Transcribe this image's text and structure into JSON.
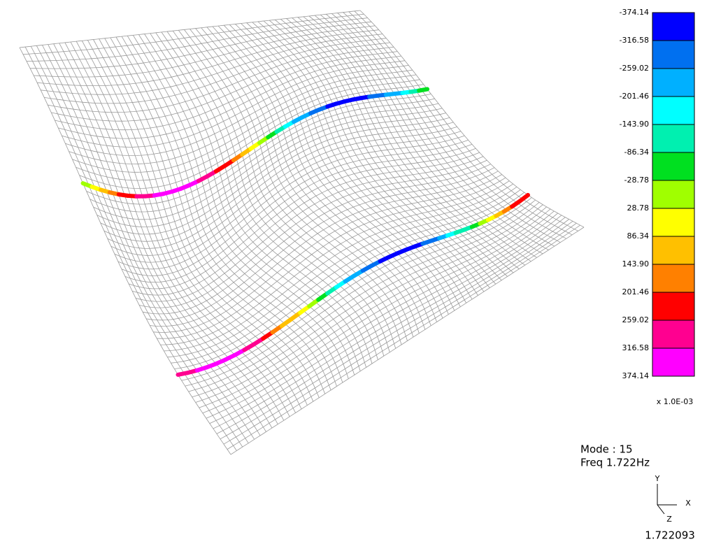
{
  "legend": {
    "labels": [
      "-374.14",
      "-316.58",
      "-259.02",
      "-201.46",
      "-143.90",
      "-86.34",
      "-28.78",
      "28.78",
      "86.34",
      "143.90",
      "201.46",
      "259.02",
      "316.58",
      "374.14"
    ],
    "colors": [
      "#0000ff",
      "#0070f0",
      "#00b0ff",
      "#00ffff",
      "#00f0b0",
      "#00e020",
      "#a0ff00",
      "#ffff00",
      "#ffc000",
      "#ff8000",
      "#ff0000",
      "#ff0090",
      "#ff00ff"
    ],
    "scale": "x 1.0E-03"
  },
  "info": {
    "mode": "Mode : 15",
    "freq": "Freq   1.722Hz"
  },
  "triad": {
    "y": "Y",
    "x": "X",
    "z": "Z"
  },
  "footer": "1.722093"
}
